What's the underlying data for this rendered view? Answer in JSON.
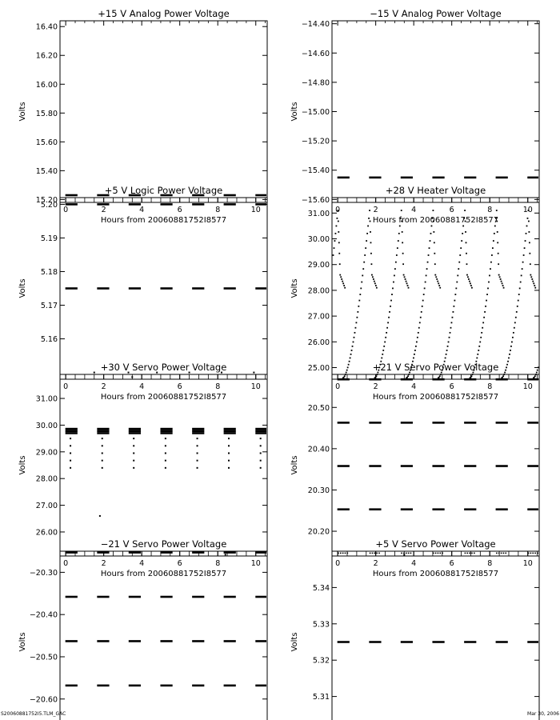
{
  "footer": {
    "left": "S20060881752I5.TLM_GAC",
    "right": "Mar 30, 2006"
  },
  "chart_data": [
    {
      "type": "scatter",
      "title": "+15 V Analog Power Voltage",
      "xlabel": "Hours from 20060881752I8577",
      "ylabel": "Volts",
      "xlim": [
        -0.3,
        10.6
      ],
      "ylim": [
        15.18,
        16.44
      ],
      "xticks": [
        "0",
        "2",
        "4",
        "6",
        "8",
        "10"
      ],
      "yticks": [
        "15.20",
        "15.40",
        "15.60",
        "15.80",
        "16.00",
        "16.20",
        "16.40"
      ],
      "pattern": {
        "kind": "bands",
        "levels": [
          15.23
        ]
      }
    },
    {
      "type": "scatter",
      "title": "−15 V Analog Power Voltage",
      "xlabel": "Hours from 20060881752I8577",
      "ylabel": "Volts",
      "xlim": [
        -0.3,
        10.6
      ],
      "ylim": [
        -15.62,
        -14.38
      ],
      "xticks": [
        "0",
        "2",
        "4",
        "6",
        "8",
        "10"
      ],
      "yticks": [
        "−15.60",
        "−15.40",
        "−15.20",
        "−15.00",
        "−14.80",
        "−14.60",
        "−14.40"
      ],
      "pattern": {
        "kind": "bands",
        "levels": [
          -15.45
        ]
      }
    },
    {
      "type": "scatter",
      "title": "+5 V Logic Power Voltage",
      "xlabel": "Hours from 20060881752I8577",
      "ylabel": "Volts",
      "xlim": [
        -0.3,
        10.6
      ],
      "ylim": [
        5.148,
        5.202
      ],
      "xticks": [
        "0",
        "2",
        "4",
        "6",
        "8",
        "10"
      ],
      "yticks": [
        "5.16",
        "5.17",
        "5.18",
        "5.19",
        "5.20"
      ],
      "pattern": {
        "kind": "bands",
        "levels": [
          5.175,
          5.2
        ],
        "outliers": [
          [
            1.5,
            5.15
          ],
          [
            3.3,
            5.15
          ],
          [
            4.8,
            5.15
          ],
          [
            6.5,
            5.15
          ],
          [
            8.2,
            5.15
          ],
          [
            9.9,
            5.15
          ]
        ]
      }
    },
    {
      "type": "scatter",
      "title": "+28 V Heater Voltage",
      "xlabel": "Hours from 20060881752I8577",
      "ylabel": "Volts",
      "xlim": [
        -0.3,
        10.6
      ],
      "ylim": [
        24.55,
        31.6
      ],
      "xticks": [
        "0",
        "2",
        "4",
        "6",
        "8",
        "10"
      ],
      "yticks": [
        "25.00",
        "26.00",
        "27.00",
        "28.00",
        "29.00",
        "30.00",
        "31.00"
      ],
      "pattern": {
        "kind": "sawtooth",
        "period": 1.67,
        "offset": -1.44,
        "low": 24.6,
        "peak": 31.1,
        "plateau": 28.6,
        "end": 28.1
      }
    },
    {
      "type": "scatter",
      "title": "+30 V Servo Power Voltage",
      "xlabel": "Hours from 20060881752I8577",
      "ylabel": "Volts",
      "xlim": [
        -0.3,
        10.6
      ],
      "ylim": [
        25.1,
        31.9
      ],
      "xticks": [
        "0",
        "2",
        "4",
        "6",
        "8",
        "10"
      ],
      "yticks": [
        "26.00",
        "27.00",
        "28.00",
        "29.00",
        "30.00",
        "31.00"
      ],
      "pattern": {
        "kind": "bands",
        "levels": [
          29.7,
          29.78,
          29.86
        ],
        "dips": [
          28.4,
          29.5
        ],
        "outliers": [
          [
            1.8,
            26.6
          ],
          [
            3.5,
            31.8
          ],
          [
            8.4,
            25.15
          ]
        ]
      }
    },
    {
      "type": "scatter",
      "title": "+21 V Servo Power Voltage",
      "xlabel": "Hours from 20060881752I8577",
      "ylabel": "Volts",
      "xlim": [
        -0.3,
        10.6
      ],
      "ylim": [
        20.14,
        20.58
      ],
      "xticks": [
        "0",
        "2",
        "4",
        "6",
        "8",
        "10"
      ],
      "yticks": [
        "20.20",
        "20.30",
        "20.40",
        "20.50"
      ],
      "pattern": {
        "kind": "bands",
        "levels": [
          20.253,
          20.358,
          20.463,
          20.568
        ],
        "lowlevel": 20.147
      }
    },
    {
      "type": "scatter",
      "title": "−21 V Servo Power Voltage",
      "xlabel": "Hours from 20060881752I8577",
      "ylabel": "Volts",
      "xlim": [
        -0.3,
        10.6
      ],
      "ylim": [
        -20.68,
        -20.25
      ],
      "xticks": [
        "0",
        "2",
        "4",
        "6",
        "8",
        "10"
      ],
      "yticks": [
        "−20.60",
        "−20.50",
        "−20.40",
        "−20.30"
      ],
      "pattern": {
        "kind": "bands",
        "levels": [
          -20.253,
          -20.358,
          -20.463,
          -20.568
        ],
        "outliers": [
          [
            1.8,
            -20.675
          ],
          [
            6.5,
            -20.675
          ],
          [
            10.1,
            -20.675
          ]
        ]
      }
    },
    {
      "type": "scatter",
      "title": "+5 V Servo Power Voltage",
      "xlabel": "Hours from 20060881752I8577",
      "ylabel": "Volts",
      "xlim": [
        -0.3,
        10.6
      ],
      "ylim": [
        5.3,
        5.35
      ],
      "xticks": [
        "0",
        "2",
        "4",
        "6",
        "8",
        "10"
      ],
      "yticks": [
        "5.31",
        "5.32",
        "5.33",
        "5.34"
      ],
      "pattern": {
        "kind": "bands",
        "levels": [
          5.325
        ],
        "outliers": [
          [
            6.9,
            5.301
          ],
          [
            3.5,
            5.349
          ]
        ]
      }
    }
  ]
}
